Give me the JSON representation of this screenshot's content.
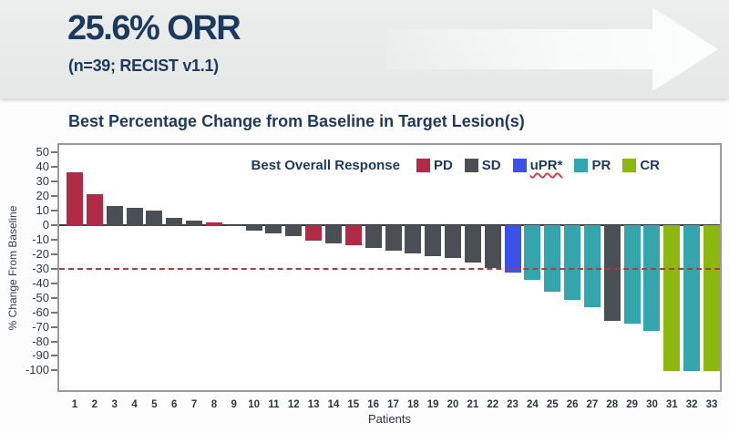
{
  "banner": {
    "headline": "25.6% ORR",
    "subline": "(n=39; RECIST v1.1)"
  },
  "chart": {
    "title": "Best Percentage Change from Baseline in Target Lesion(s)"
  },
  "colors": {
    "navy_text": "#1d3a5e",
    "banner_background": "#e9ebeb",
    "plot_border": "#97999c",
    "zero_line": "#3c4147",
    "threshold_line": "#ae3b3b"
  },
  "chart_data": {
    "type": "bar",
    "title": "Best Percentage Change from Baseline in Target Lesion(s)",
    "xlabel": "Patients",
    "ylabel": "% Change From Baseline",
    "ylim": [
      -100,
      50
    ],
    "yticks": [
      50,
      40,
      30,
      20,
      10,
      0,
      -10,
      -20,
      -30,
      -40,
      -50,
      -60,
      -70,
      -80,
      -90,
      -100
    ],
    "grid": false,
    "reference_line": {
      "y": -30,
      "style": "dashed",
      "color": "#ae3b3b"
    },
    "legend": {
      "title": "Best Overall Response",
      "position": "top-right-inside",
      "items": [
        {
          "label": "PD",
          "response": "PD",
          "color": "#b12a46"
        },
        {
          "label": "SD",
          "response": "SD",
          "color": "#4a4e55"
        },
        {
          "label": "uPR*",
          "response": "uPR",
          "color": "#3b51e9",
          "underline": "wavy-red"
        },
        {
          "label": "PR",
          "response": "PR",
          "color": "#34a5ad"
        },
        {
          "label": "CR",
          "response": "CR",
          "color": "#8bb70e"
        }
      ]
    },
    "categories": [
      1,
      2,
      3,
      4,
      5,
      6,
      7,
      8,
      9,
      10,
      11,
      12,
      13,
      14,
      15,
      16,
      17,
      18,
      19,
      20,
      21,
      22,
      23,
      24,
      25,
      26,
      27,
      28,
      29,
      30,
      31,
      32,
      33
    ],
    "bars": [
      {
        "patient": 1,
        "value": 36,
        "response": "PD"
      },
      {
        "patient": 2,
        "value": 21,
        "response": "PD"
      },
      {
        "patient": 3,
        "value": 13,
        "response": "SD"
      },
      {
        "patient": 4,
        "value": 12,
        "response": "SD"
      },
      {
        "patient": 5,
        "value": 10,
        "response": "SD"
      },
      {
        "patient": 6,
        "value": 5,
        "response": "SD"
      },
      {
        "patient": 7,
        "value": 3,
        "response": "SD"
      },
      {
        "patient": 8,
        "value": 2,
        "response": "PD"
      },
      {
        "patient": 9,
        "value": 0,
        "response": "SD"
      },
      {
        "patient": 10,
        "value": -3,
        "response": "SD"
      },
      {
        "patient": 11,
        "value": -5,
        "response": "SD"
      },
      {
        "patient": 12,
        "value": -7,
        "response": "SD"
      },
      {
        "patient": 13,
        "value": -10,
        "response": "PD"
      },
      {
        "patient": 14,
        "value": -12,
        "response": "SD"
      },
      {
        "patient": 15,
        "value": -13,
        "response": "PD"
      },
      {
        "patient": 16,
        "value": -15,
        "response": "SD"
      },
      {
        "patient": 17,
        "value": -17,
        "response": "SD"
      },
      {
        "patient": 18,
        "value": -19,
        "response": "SD"
      },
      {
        "patient": 19,
        "value": -21,
        "response": "SD"
      },
      {
        "patient": 20,
        "value": -22,
        "response": "SD"
      },
      {
        "patient": 21,
        "value": -25,
        "response": "SD"
      },
      {
        "patient": 22,
        "value": -29,
        "response": "SD"
      },
      {
        "patient": 23,
        "value": -32,
        "response": "uPR"
      },
      {
        "patient": 24,
        "value": -37,
        "response": "PR"
      },
      {
        "patient": 25,
        "value": -45,
        "response": "PR"
      },
      {
        "patient": 26,
        "value": -51,
        "response": "PR"
      },
      {
        "patient": 27,
        "value": -56,
        "response": "PR"
      },
      {
        "patient": 28,
        "value": -65,
        "response": "SD"
      },
      {
        "patient": 29,
        "value": -67,
        "response": "PR"
      },
      {
        "patient": 30,
        "value": -72,
        "response": "PR"
      },
      {
        "patient": 31,
        "value": -100,
        "response": "CR"
      },
      {
        "patient": 32,
        "value": -100,
        "response": "PR"
      },
      {
        "patient": 33,
        "value": -100,
        "response": "CR"
      }
    ]
  }
}
